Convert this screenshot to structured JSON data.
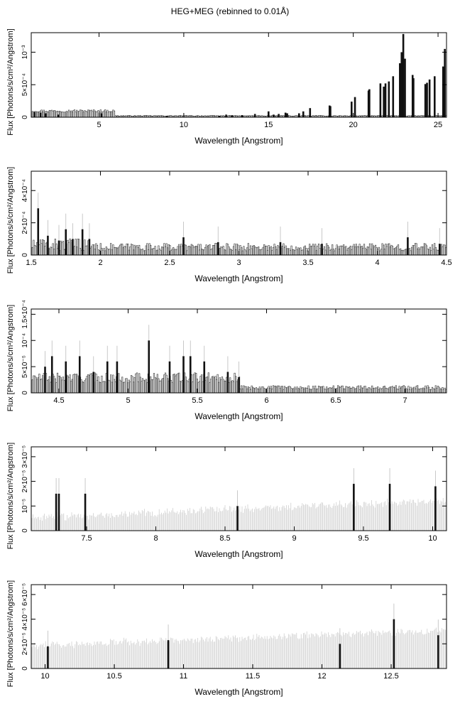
{
  "title": "HEG+MEG (rebinned to 0.01Å)",
  "chart_data": [
    {
      "type": "histogram",
      "xlabel": "Wavelength [Angstrom]",
      "ylabel": "Flux [Photons/s/cm²/Angstrom]",
      "xlim": [
        1.0,
        25.5
      ],
      "ylim": [
        0,
        0.0013
      ],
      "xticks": [
        {
          "value": 5,
          "label": "5"
        },
        {
          "value": 10,
          "label": "10"
        },
        {
          "value": 15,
          "label": "15"
        },
        {
          "value": 20,
          "label": "20"
        },
        {
          "value": 25,
          "label": "25"
        }
      ],
      "yticks": [
        {
          "value": 0,
          "label": "0"
        },
        {
          "value": 0.0005,
          "label": "5×10⁻⁴"
        },
        {
          "value": 0.001,
          "label": "10⁻³"
        }
      ],
      "lines": [
        [
          1.2,
          8e-05
        ],
        [
          1.55,
          7e-05
        ],
        [
          1.85,
          6e-05
        ],
        [
          2.6,
          4e-05
        ],
        [
          5.15,
          6e-05
        ],
        [
          9.0,
          2e-05
        ],
        [
          12.1,
          2e-05
        ],
        [
          12.5,
          4e-05
        ],
        [
          12.85,
          3e-05
        ],
        [
          13.45,
          3e-05
        ],
        [
          14.2,
          5e-05
        ],
        [
          15.0,
          9e-05
        ],
        [
          15.3,
          4e-05
        ],
        [
          15.6,
          5e-05
        ],
        [
          16.0,
          7e-05
        ],
        [
          16.1,
          6e-05
        ],
        [
          16.8,
          6e-05
        ],
        [
          17.05,
          9e-05
        ],
        [
          17.45,
          0.00014
        ],
        [
          18.6,
          0.00018
        ],
        [
          18.65,
          0.00017
        ],
        [
          19.9,
          0.00024
        ],
        [
          20.1,
          0.00031
        ],
        [
          20.9,
          0.00041
        ],
        [
          20.95,
          0.00043
        ],
        [
          21.6,
          0.00052
        ],
        [
          21.8,
          0.00047
        ],
        [
          21.9,
          0.00052
        ],
        [
          22.1,
          0.00055
        ],
        [
          22.35,
          0.00063
        ],
        [
          22.75,
          0.00083
        ],
        [
          22.85,
          0.001
        ],
        [
          22.95,
          0.00128
        ],
        [
          23.05,
          0.0009
        ],
        [
          23.5,
          0.00065
        ],
        [
          23.55,
          0.0006
        ],
        [
          24.25,
          0.00051
        ],
        [
          24.35,
          0.00053
        ],
        [
          24.5,
          0.00058
        ],
        [
          24.8,
          0.00063
        ],
        [
          25.3,
          0.00078
        ],
        [
          25.4,
          0.00105
        ]
      ]
    },
    {
      "type": "histogram",
      "xlabel": "Wavelength [Angstrom]",
      "ylabel": "Flux [Photons/s/cm²/Angstrom]",
      "xlim": [
        1.5,
        4.5
      ],
      "ylim": [
        0,
        0.00052
      ],
      "xticks": [
        {
          "value": 1.5,
          "label": "1.5"
        },
        {
          "value": 2,
          "label": "2"
        },
        {
          "value": 2.5,
          "label": "2.5"
        },
        {
          "value": 3,
          "label": "3"
        },
        {
          "value": 3.5,
          "label": "3.5"
        },
        {
          "value": 4,
          "label": "4"
        },
        {
          "value": 4.5,
          "label": "4.5"
        }
      ],
      "yticks": [
        {
          "value": 0,
          "label": "0"
        },
        {
          "value": 0.0002,
          "label": "2×10⁻⁴"
        },
        {
          "value": 0.0004,
          "label": "4×10⁻⁴"
        }
      ],
      "bars": [
        [
          1.55,
          0.00029
        ],
        [
          1.62,
          0.00012
        ],
        [
          1.7,
          9e-05
        ],
        [
          1.75,
          0.00016
        ],
        [
          1.8,
          0.0001
        ],
        [
          1.87,
          0.00016
        ],
        [
          1.92,
          0.0001
        ],
        [
          2.6,
          0.00011
        ],
        [
          2.85,
          8e-05
        ],
        [
          3.3,
          8e-05
        ],
        [
          3.6,
          7e-05
        ],
        [
          4.22,
          0.00011
        ],
        [
          4.45,
          7e-05
        ]
      ]
    },
    {
      "type": "histogram",
      "xlabel": "Wavelength [Angstrom]",
      "ylabel": "Flux [Photons/s/cm²/Angstrom]",
      "xlim": [
        4.3,
        7.3
      ],
      "ylim": [
        0,
        0.00016
      ],
      "xticks": [
        {
          "value": 4.5,
          "label": "4.5"
        },
        {
          "value": 5,
          "label": "5"
        },
        {
          "value": 5.5,
          "label": "5.5"
        },
        {
          "value": 6,
          "label": "6"
        },
        {
          "value": 6.5,
          "label": "6.5"
        },
        {
          "value": 7,
          "label": "7"
        }
      ],
      "yticks": [
        {
          "value": 0,
          "label": "0"
        },
        {
          "value": 5e-05,
          "label": "5×10⁻⁵"
        },
        {
          "value": 0.0001,
          "label": "10⁻⁴"
        },
        {
          "value": 0.00015,
          "label": "1.5×10⁻⁴"
        }
      ],
      "bars": [
        [
          4.4,
          5e-05
        ],
        [
          4.45,
          7e-05
        ],
        [
          4.55,
          6e-05
        ],
        [
          4.65,
          7e-05
        ],
        [
          4.75,
          4e-05
        ],
        [
          4.85,
          6e-05
        ],
        [
          4.92,
          6e-05
        ],
        [
          5.15,
          0.0001
        ],
        [
          5.3,
          6e-05
        ],
        [
          5.4,
          7e-05
        ],
        [
          5.45,
          7e-05
        ],
        [
          5.55,
          6e-05
        ],
        [
          5.72,
          4e-05
        ],
        [
          5.8,
          3e-05
        ]
      ]
    },
    {
      "type": "histogram",
      "xlabel": "Wavelength [Angstrom]",
      "ylabel": "Flux [Photons/s/cm²/Angstrom]",
      "xlim": [
        7.1,
        10.1
      ],
      "ylim": [
        0,
        3.4e-05
      ],
      "xticks": [
        {
          "value": 7.5,
          "label": "7.5"
        },
        {
          "value": 8,
          "label": "8"
        },
        {
          "value": 8.5,
          "label": "8.5"
        },
        {
          "value": 9,
          "label": "9"
        },
        {
          "value": 9.5,
          "label": "9.5"
        },
        {
          "value": 10,
          "label": "10"
        }
      ],
      "yticks": [
        {
          "value": 0,
          "label": "0"
        },
        {
          "value": 1e-05,
          "label": "10⁻⁵"
        },
        {
          "value": 2e-05,
          "label": "2×10⁻⁵"
        },
        {
          "value": 3e-05,
          "label": "3×10⁻⁵"
        }
      ],
      "bars": [
        [
          7.28,
          1.5e-05
        ],
        [
          7.3,
          1.5e-05
        ],
        [
          7.49,
          1.5e-05
        ],
        [
          8.59,
          1e-05
        ],
        [
          9.43,
          1.9e-05
        ],
        [
          9.69,
          1.9e-05
        ],
        [
          10.02,
          1.8e-05
        ]
      ]
    },
    {
      "type": "histogram",
      "xlabel": "Wavelength [Angstrom]",
      "ylabel": "Flux [Photons/s/cm²/Angstrom]",
      "xlim": [
        9.9,
        12.9
      ],
      "ylim": [
        0,
        6.8e-05
      ],
      "xticks": [
        {
          "value": 10,
          "label": "10"
        },
        {
          "value": 10.5,
          "label": "10.5"
        },
        {
          "value": 11,
          "label": "11"
        },
        {
          "value": 11.5,
          "label": "11.5"
        },
        {
          "value": 12,
          "label": "12"
        },
        {
          "value": 12.5,
          "label": "12.5"
        }
      ],
      "yticks": [
        {
          "value": 0,
          "label": "0"
        },
        {
          "value": 2e-05,
          "label": "2×10⁻⁵"
        },
        {
          "value": 4e-05,
          "label": "4×10⁻⁵"
        },
        {
          "value": 6e-05,
          "label": "6×10⁻⁵"
        }
      ],
      "bars": [
        [
          10.02,
          1.8e-05
        ],
        [
          10.89,
          2.3e-05
        ],
        [
          12.13,
          2e-05
        ],
        [
          12.52,
          4e-05
        ],
        [
          12.84,
          2.7e-05
        ]
      ]
    }
  ]
}
